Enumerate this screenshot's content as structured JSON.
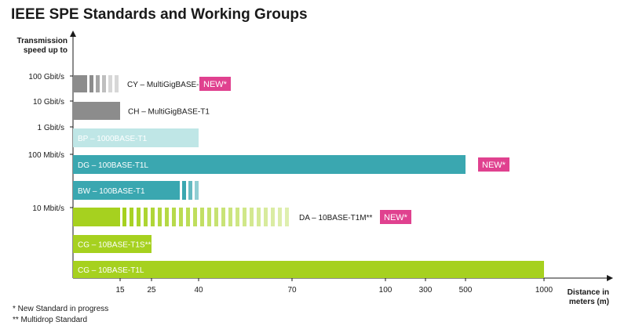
{
  "title": "IEEE SPE Standards and Working Groups",
  "chart_data": {
    "type": "bar",
    "orientation": "horizontal",
    "y_axis_title": [
      "Transmission",
      "speed up to"
    ],
    "x_axis_title": [
      "Distance in",
      "meters (m)"
    ],
    "speed_ticks": [
      "100 Gbit/s",
      "10 Gbit/s",
      "1 Gbit/s",
      "100 Mbit/s",
      "10 Mbit/s"
    ],
    "x_ticks": [
      15,
      25,
      40,
      70,
      100,
      300,
      500,
      1000
    ],
    "bars": [
      {
        "label": "CY – MultiGigBASE-T1",
        "label_position": "outside",
        "distance": 10,
        "planned_distance": 15,
        "color": "#8c8c8c",
        "new": true
      },
      {
        "label": "CH – MultiGigBASE-T1",
        "label_position": "outside",
        "distance": 15,
        "color": "#8c8c8c",
        "new": false
      },
      {
        "label": "BP – 1000BASE-T1",
        "label_position": "inside",
        "distance": 40,
        "color": "#bfe6e6",
        "new": false
      },
      {
        "label": "DG – 100BASE-T1L",
        "label_position": "inside",
        "distance": 500,
        "color": "#3aa7b0",
        "new": true
      },
      {
        "label": "BW – 100BASE-T1",
        "label_position": "inside",
        "distance": 34,
        "planned_distance": 40,
        "color": "#3aa7b0",
        "new": false
      },
      {
        "label": "DA – 10BASE-T1M**",
        "label_position": "outside",
        "distance": 15,
        "planned_distance": 70,
        "color": "#a6d11f",
        "new": true
      },
      {
        "label": "CG – 10BASE-T1S**",
        "label_position": "inside",
        "distance": 25,
        "color": "#a6d11f",
        "new": false
      },
      {
        "label": "CG – 10BASE-T1L",
        "label_position": "inside",
        "distance": 1000,
        "color": "#a6d11f",
        "new": false
      }
    ],
    "new_badge_label": "NEW*",
    "new_badge_color": "#e0418f"
  },
  "footnotes": [
    "*  New Standard in progress",
    "** Multidrop Standard"
  ]
}
